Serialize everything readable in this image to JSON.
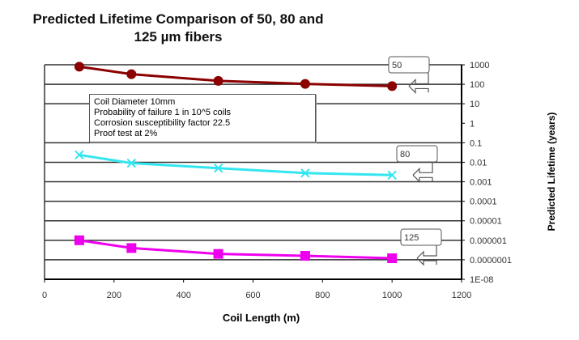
{
  "chart_data": {
    "type": "line",
    "title": "Predicted Lifetime Comparison of 50, 80 and",
    "title_line2": "125 µm fibers",
    "xlabel": "Coil Length (m)",
    "ylabel": "Predicted Lifetime (years)",
    "xlim": [
      0,
      1200
    ],
    "ylim": [
      1e-08,
      1000
    ],
    "yscale": "log",
    "y_axis_side": "right",
    "grid": "horizontal",
    "x_ticks": [
      "0",
      "200",
      "400",
      "600",
      "800",
      "1000",
      "1200"
    ],
    "y_ticks": [
      "1000",
      "100",
      "10",
      "1",
      "0.1",
      "0.01",
      "0.001",
      "0.0001",
      "0.00001",
      "0.000001",
      "0.0000001",
      "1E-08"
    ],
    "x": [
      100,
      250,
      500,
      750,
      1000
    ],
    "series": [
      {
        "name": "50",
        "values": [
          800,
          330,
          150,
          105,
          80
        ],
        "color": "#8b0000",
        "marker": "circle"
      },
      {
        "name": "80",
        "values": [
          0.024,
          0.009,
          0.005,
          0.0028,
          0.0022
        ],
        "color": "#33e6f0",
        "marker": "x"
      },
      {
        "name": "125",
        "values": [
          1e-06,
          4e-07,
          2e-07,
          1.6e-07,
          1.2e-07
        ],
        "color": "#ee00ee",
        "marker": "square"
      }
    ],
    "annotation": [
      "Coil Diameter 10mm",
      "Probability of failure 1 in 10^5 coils",
      "Corrosion susceptibility factor 22.5",
      "Proof test at 2%"
    ]
  }
}
